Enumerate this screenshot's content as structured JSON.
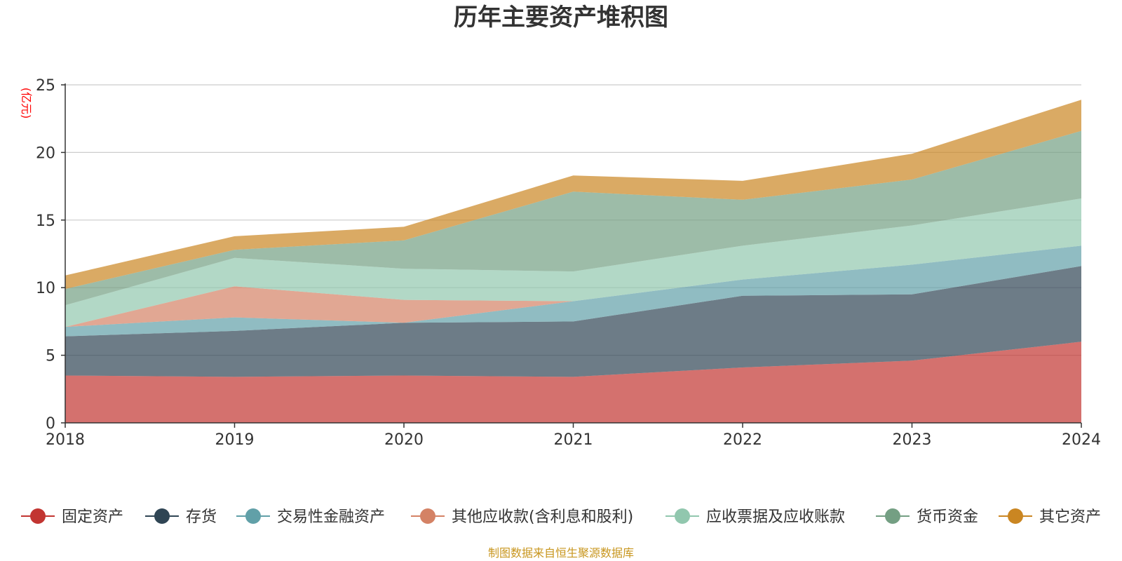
{
  "chart_data": {
    "type": "area",
    "stacked": true,
    "title": "历年主要资产堆积图",
    "ylabel": "(亿元)",
    "xlabel": "",
    "categories": [
      "2018",
      "2019",
      "2020",
      "2021",
      "2022",
      "2023",
      "2024"
    ],
    "ylim": [
      0,
      25
    ],
    "yticks": [
      0,
      5,
      10,
      15,
      20,
      25
    ],
    "grid": true,
    "legend_position": "bottom",
    "series": [
      {
        "name": "固定资产",
        "color": "#c23531",
        "values": [
          3.5,
          3.4,
          3.5,
          3.4,
          4.1,
          4.6,
          6.0
        ]
      },
      {
        "name": "存货",
        "color": "#2f4554",
        "values": [
          2.9,
          3.4,
          3.9,
          4.1,
          5.3,
          4.9,
          5.6
        ]
      },
      {
        "name": "交易性金融资产",
        "color": "#61a0a8",
        "values": [
          0.7,
          1.0,
          0.0,
          1.5,
          1.2,
          2.2,
          1.5
        ]
      },
      {
        "name": "其他应收款(含利息和股利)",
        "color": "#d48265",
        "values": [
          0.0,
          2.3,
          1.7,
          0.0,
          0.0,
          0.0,
          0.0
        ]
      },
      {
        "name": "应收票据及应收账款",
        "color": "#91c7ae",
        "values": [
          1.6,
          2.1,
          2.3,
          2.2,
          2.5,
          2.9,
          3.5
        ]
      },
      {
        "name": "货币资金",
        "color": "#749f83",
        "values": [
          1.2,
          0.6,
          2.1,
          5.9,
          3.4,
          3.4,
          5.0
        ]
      },
      {
        "name": "其它资产",
        "color": "#ca8622",
        "values": [
          1.0,
          1.0,
          1.0,
          1.2,
          1.4,
          1.9,
          2.3
        ]
      }
    ]
  },
  "footer": {
    "source": "制图数据来自恒生聚源数据库"
  },
  "style": {
    "grid_color": "#cccccc",
    "axis_color": "#333333",
    "title_color": "#333333",
    "ylabel_color": "#ff0000",
    "footer_color": "#c8961e",
    "area_opacity": 0.7
  }
}
